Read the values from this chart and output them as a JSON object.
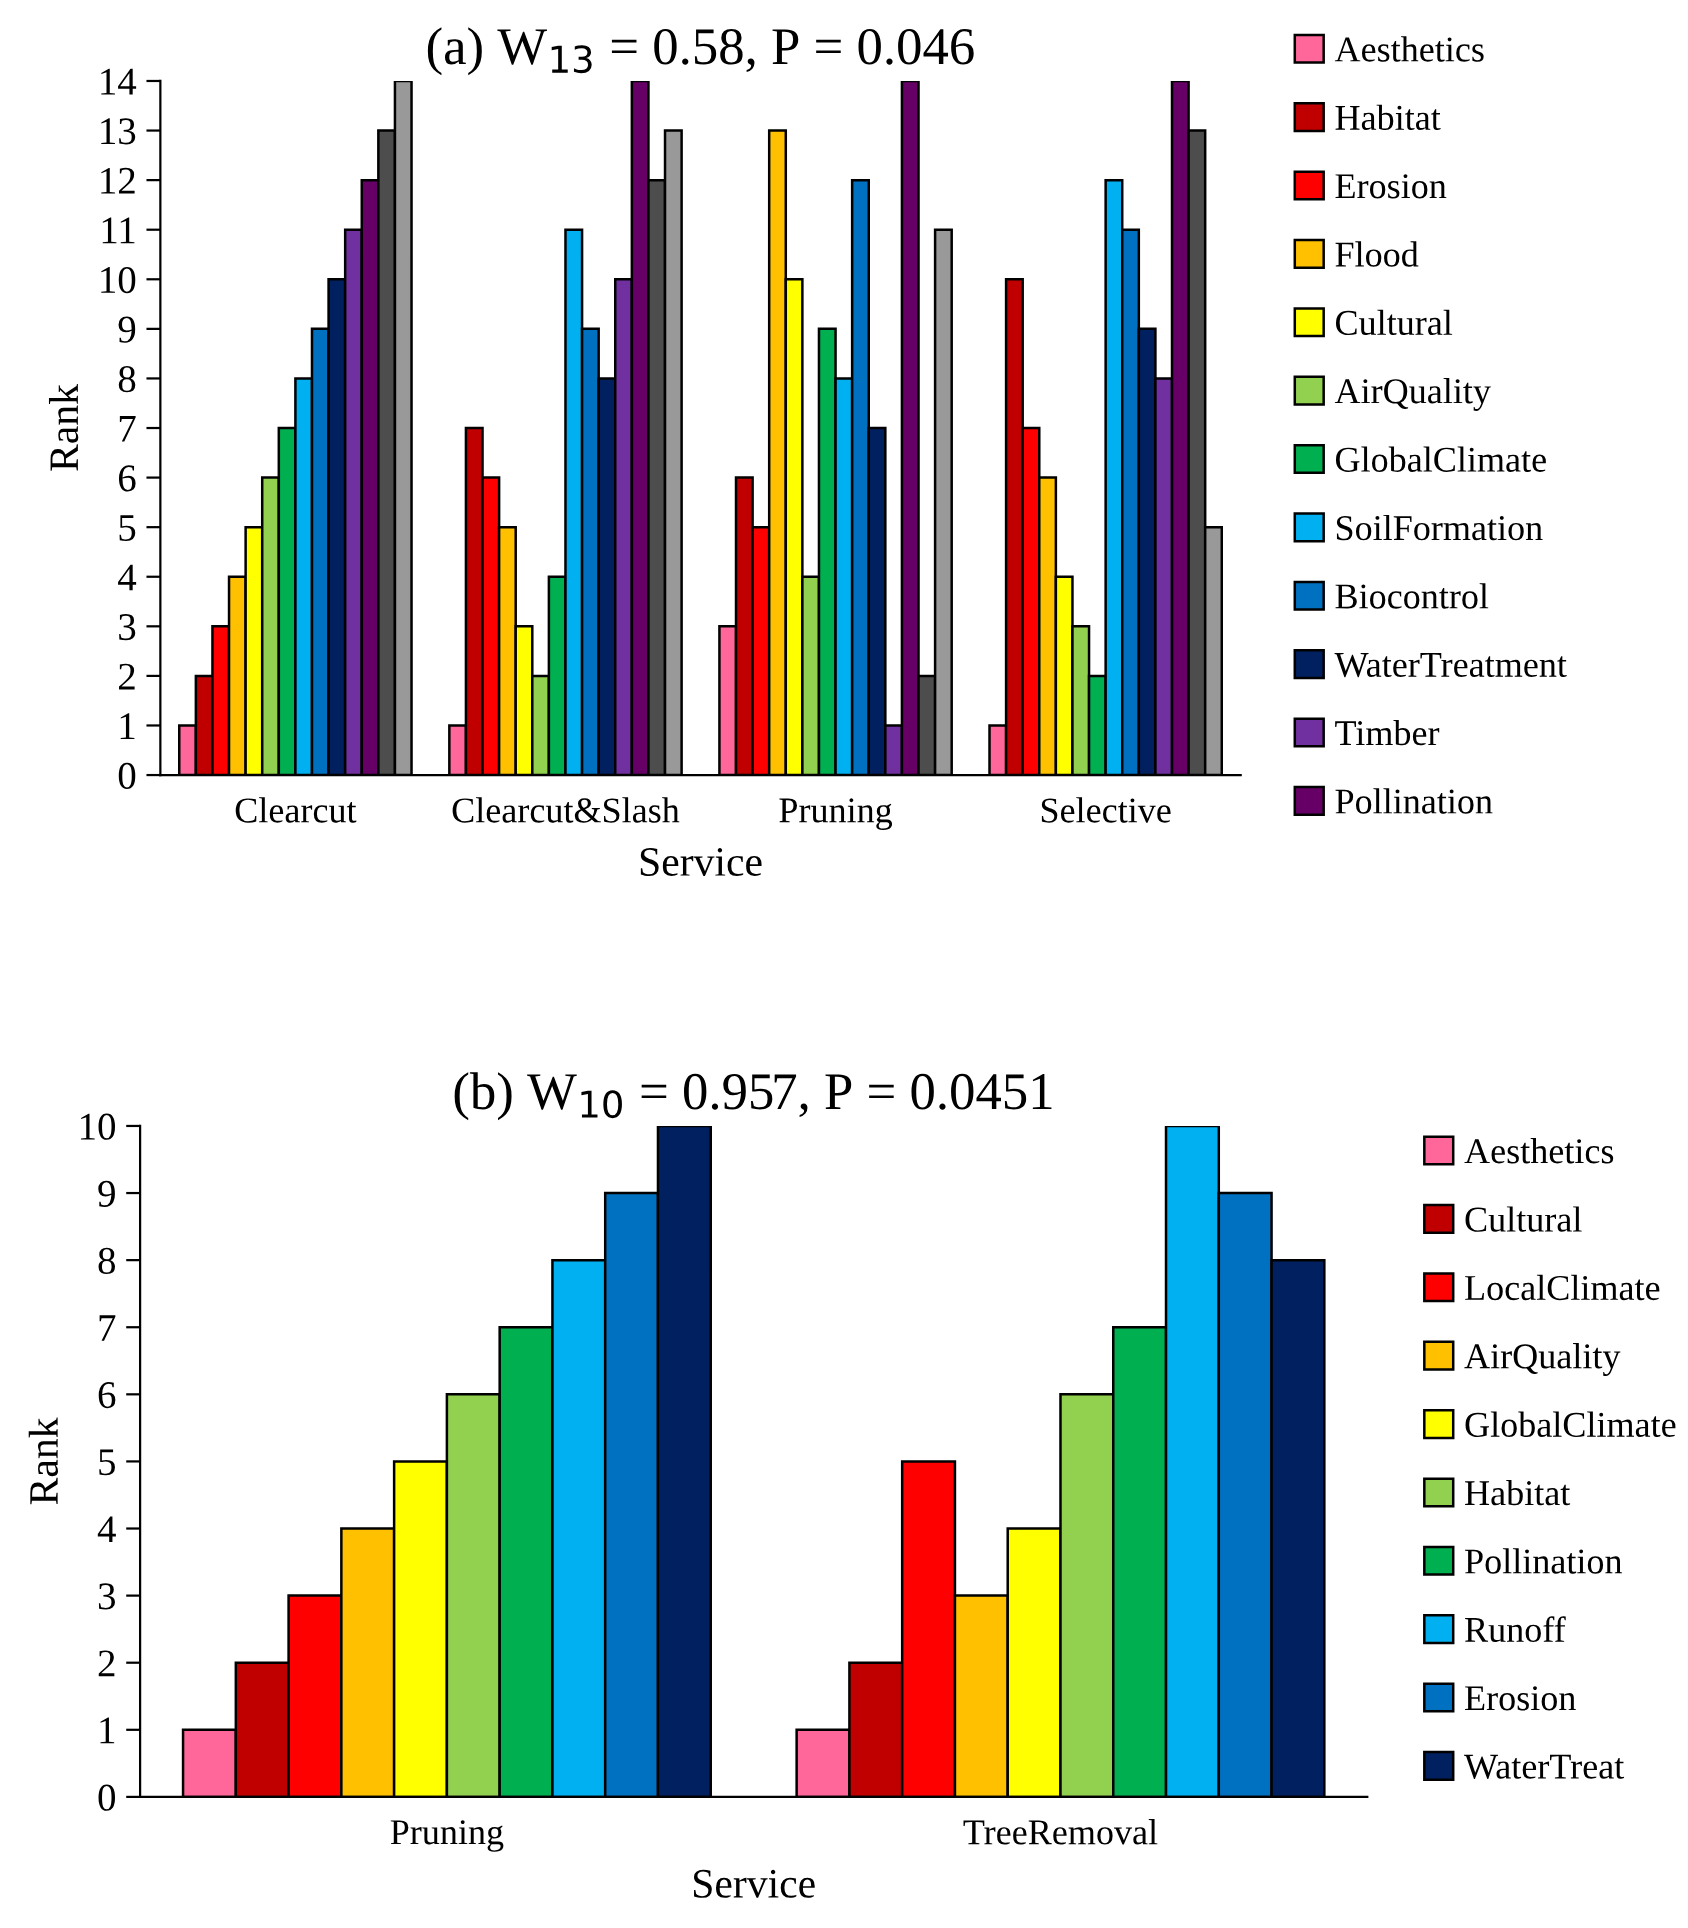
{
  "chart_data": [
    {
      "type": "bar",
      "title": "(a) W$_{13}$ = 0.58, P = 0.046",
      "xlabel": "Service",
      "ylabel": "Rank",
      "categories": [
        "Clearcut",
        "Clearcut&Slash",
        "Pruning",
        "Selective"
      ],
      "ylim": [
        0,
        14
      ],
      "yticks": [
        0,
        1,
        2,
        3,
        4,
        5,
        6,
        7,
        8,
        9,
        10,
        11,
        12,
        13,
        14
      ],
      "grid": false,
      "legend": "right",
      "series": [
        {
          "name": "Aesthetics",
          "color": "#ff6699",
          "values": [
            1,
            1,
            3,
            1
          ]
        },
        {
          "name": "Habitat",
          "color": "#c00000",
          "values": [
            2,
            7,
            6,
            10
          ]
        },
        {
          "name": "Erosion",
          "color": "#ff0000",
          "values": [
            3,
            6,
            5,
            7
          ]
        },
        {
          "name": "Flood",
          "color": "#ffc000",
          "values": [
            4,
            5,
            13,
            6
          ]
        },
        {
          "name": "Cultural",
          "color": "#ffff00",
          "values": [
            5,
            3,
            10,
            4
          ]
        },
        {
          "name": "AirQuality",
          "color": "#92d050",
          "values": [
            6,
            2,
            4,
            3
          ]
        },
        {
          "name": "GlobalClimate",
          "color": "#00b050",
          "values": [
            7,
            4,
            9,
            2
          ]
        },
        {
          "name": "SoilFormation",
          "color": "#00b0f0",
          "values": [
            8,
            11,
            8,
            12
          ]
        },
        {
          "name": "Biocontrol",
          "color": "#0070c0",
          "values": [
            9,
            9,
            12,
            11
          ]
        },
        {
          "name": "WaterTreatment",
          "color": "#002060",
          "values": [
            10,
            8,
            7,
            9
          ]
        },
        {
          "name": "Timber",
          "color": "#7030a0",
          "values": [
            11,
            10,
            1,
            8
          ]
        },
        {
          "name": "Pollination",
          "color": "#660066",
          "values": [
            12,
            14,
            14,
            14
          ]
        },
        {
          "color": "#4d4d4d",
          "values": [
            13,
            12,
            2,
            13
          ]
        },
        {
          "color": "#999999",
          "values": [
            14,
            13,
            11,
            5
          ]
        }
      ]
    },
    {
      "type": "bar",
      "title": "(b) W$_{10}$ = 0.957, P = 0.0451",
      "xlabel": "Service",
      "ylabel": "Rank",
      "categories": [
        "Pruning",
        "TreeRemoval"
      ],
      "ylim": [
        0,
        10
      ],
      "yticks": [
        0,
        1,
        2,
        3,
        4,
        5,
        6,
        7,
        8,
        9,
        10
      ],
      "grid": false,
      "legend": "right",
      "series": [
        {
          "name": "Aesthetics",
          "color": "#ff6699",
          "values": [
            1,
            1
          ]
        },
        {
          "name": "Cultural",
          "color": "#c00000",
          "values": [
            2,
            2
          ]
        },
        {
          "name": "LocalClimate",
          "color": "#ff0000",
          "values": [
            3,
            5
          ]
        },
        {
          "name": "AirQuality",
          "color": "#ffc000",
          "values": [
            4,
            3
          ]
        },
        {
          "name": "GlobalClimate",
          "color": "#ffff00",
          "values": [
            5,
            4
          ]
        },
        {
          "name": "Habitat",
          "color": "#92d050",
          "values": [
            6,
            6
          ]
        },
        {
          "name": "Pollination",
          "color": "#00b050",
          "values": [
            7,
            7
          ]
        },
        {
          "name": "Runoff",
          "color": "#00b0f0",
          "values": [
            8,
            10
          ]
        },
        {
          "name": "Erosion",
          "color": "#0070c0",
          "values": [
            9,
            9
          ]
        },
        {
          "name": "WaterTreat",
          "color": "#002060",
          "values": [
            10,
            8
          ]
        }
      ]
    }
  ]
}
